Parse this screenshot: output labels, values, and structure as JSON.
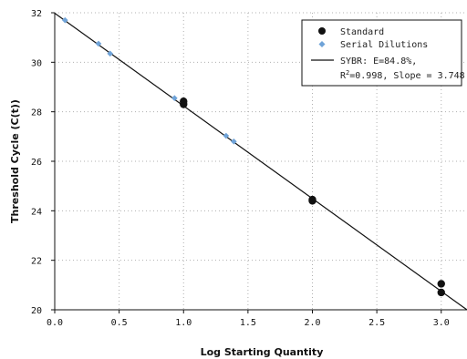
{
  "chart_data": {
    "type": "scatter",
    "xlabel": "Log Starting Quantity",
    "ylabel": "Threshold Cycle (C(t))",
    "xlim": [
      0,
      3.2
    ],
    "ylim": [
      20,
      32
    ],
    "xticks": [
      0,
      0.5,
      1,
      1.5,
      2,
      2.5,
      3
    ],
    "xtick_labels": [
      "0.0",
      "0.5",
      "1.0",
      "1.5",
      "2.0",
      "2.5",
      "3.0"
    ],
    "yticks": [
      20,
      22,
      24,
      26,
      28,
      30,
      32
    ],
    "ytick_labels": [
      "20",
      "22",
      "24",
      "26",
      "28",
      "30",
      "32"
    ],
    "grid": true,
    "legend_position": "top-right",
    "series": [
      {
        "name": "Standard",
        "marker": "circle",
        "color": "#111111",
        "points": [
          {
            "x": 1.0,
            "y": 28.3
          },
          {
            "x": 1.0,
            "y": 28.42
          },
          {
            "x": 2.0,
            "y": 24.4
          },
          {
            "x": 2.0,
            "y": 24.45
          },
          {
            "x": 3.0,
            "y": 21.05
          },
          {
            "x": 3.0,
            "y": 20.7
          }
        ]
      },
      {
        "name": "Serial Dilutions",
        "marker": "diamond",
        "color": "#6fa3d8",
        "points": [
          {
            "x": 0.08,
            "y": 31.7
          },
          {
            "x": 0.34,
            "y": 30.75
          },
          {
            "x": 0.43,
            "y": 30.35
          },
          {
            "x": 0.93,
            "y": 28.55
          },
          {
            "x": 1.33,
            "y": 27.03
          },
          {
            "x": 1.39,
            "y": 26.8
          }
        ]
      }
    ],
    "fit_line": {
      "name_lines": [
        "SYBR: E=84.8%,",
        "R",
        "2",
        "=0.998, Slope = 3.748"
      ],
      "color": "#111111",
      "x": [
        0,
        3.2
      ],
      "y": [
        31.98,
        20.0
      ]
    }
  }
}
